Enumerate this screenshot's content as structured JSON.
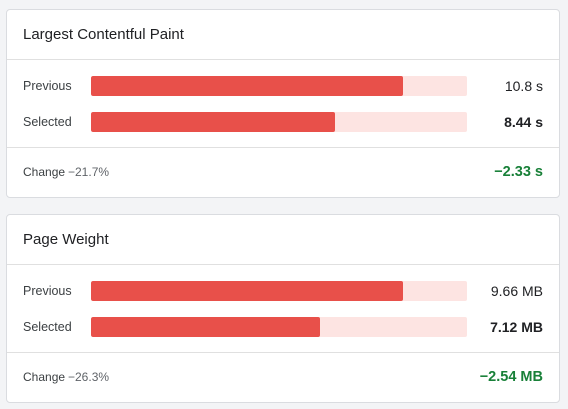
{
  "colors": {
    "bar_fill": "#e8504a",
    "bar_track": "#fde4e2",
    "positive_change": "#188038"
  },
  "metrics": [
    {
      "title": "Largest Contentful Paint",
      "rows": [
        {
          "label": "Previous",
          "value": "10.8 s",
          "fraction": 0.83
        },
        {
          "label": "Selected",
          "value": "8.44 s",
          "fraction": 0.65
        }
      ],
      "change_label": "Change",
      "change_percent": "−21.7%",
      "change_value": "−2.33 s"
    },
    {
      "title": "Page Weight",
      "rows": [
        {
          "label": "Previous",
          "value": "9.66 MB",
          "fraction": 0.83
        },
        {
          "label": "Selected",
          "value": "7.12 MB",
          "fraction": 0.61
        }
      ],
      "change_label": "Change",
      "change_percent": "−26.3%",
      "change_value": "−2.54 MB"
    }
  ]
}
